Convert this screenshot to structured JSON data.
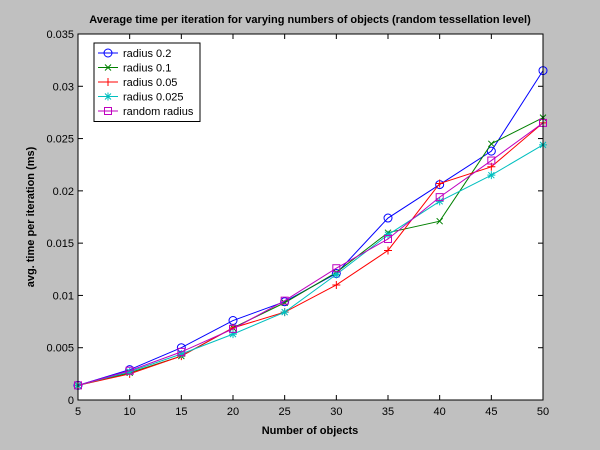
{
  "chart_data": {
    "type": "line",
    "title": "Average time per iteration for varying numbers of objects (random tessellation level)",
    "xlabel": "Number of objects",
    "ylabel": "avg. time per iteration (ms)",
    "xlim": [
      5,
      50
    ],
    "ylim": [
      0,
      0.035
    ],
    "x_ticks": [
      "5",
      "10",
      "15",
      "20",
      "25",
      "30",
      "35",
      "40",
      "45",
      "50"
    ],
    "y_ticks": [
      "0",
      "0.005",
      "0.01",
      "0.015",
      "0.02",
      "0.025",
      "0.03",
      "0.035"
    ],
    "grid": false,
    "legend_position": "top-left",
    "x": [
      5,
      10,
      15,
      20,
      25,
      30,
      35,
      40,
      45,
      50
    ],
    "series": [
      {
        "name": "radius 0.2",
        "color": "#0000FF",
        "marker": "circle",
        "values": [
          0.0014,
          0.0029,
          0.005,
          0.0076,
          0.0094,
          0.0121,
          0.0174,
          0.0206,
          0.0238,
          0.0315
        ]
      },
      {
        "name": "radius 0.1",
        "color": "#008000",
        "marker": "x",
        "values": [
          0.0014,
          0.0026,
          0.0042,
          0.0069,
          0.0093,
          0.0122,
          0.016,
          0.0171,
          0.0245,
          0.027
        ]
      },
      {
        "name": "radius 0.05",
        "color": "#FF0000",
        "marker": "plus",
        "values": [
          0.0014,
          0.0025,
          0.0042,
          0.0069,
          0.0084,
          0.011,
          0.0143,
          0.0207,
          0.0223,
          0.0265
        ]
      },
      {
        "name": "radius 0.025",
        "color": "#00BFBF",
        "marker": "star",
        "values": [
          0.0014,
          0.0027,
          0.0044,
          0.0063,
          0.0084,
          0.012,
          0.0158,
          0.019,
          0.0215,
          0.0244
        ]
      },
      {
        "name": "random radius",
        "color": "#BF00BF",
        "marker": "square",
        "values": [
          0.0014,
          0.0028,
          0.0046,
          0.0068,
          0.0095,
          0.0126,
          0.0154,
          0.0194,
          0.0229,
          0.0265
        ]
      }
    ]
  }
}
